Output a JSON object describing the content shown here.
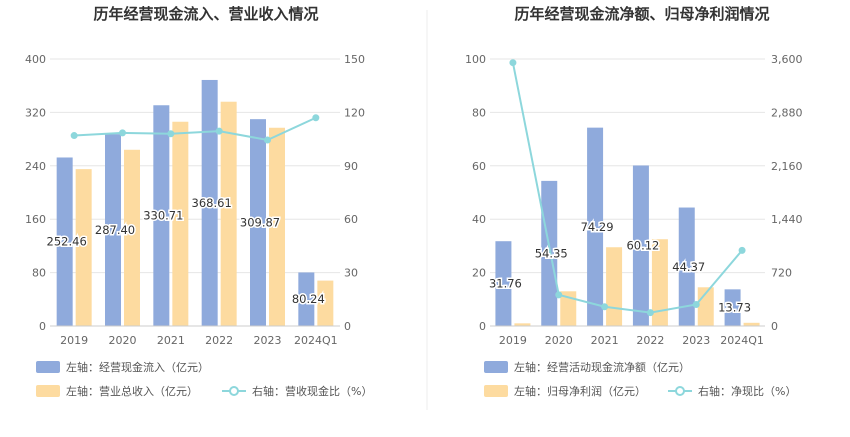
{
  "colors": {
    "bar_primary": "#8faadc",
    "bar_secondary": "#fddba0",
    "line": "#8dd7dc",
    "grid": "#e6e6e6",
    "divider": "#eeeeee"
  },
  "chart_data": [
    {
      "type": "bar",
      "title": "历年经营现金流入、营业收入情况",
      "categories": [
        "2019",
        "2020",
        "2021",
        "2022",
        "2023",
        "2024Q1"
      ],
      "left_axis": {
        "ticks": [
          "0",
          "80",
          "160",
          "240",
          "320",
          "400"
        ],
        "ylim": [
          0,
          400
        ]
      },
      "right_axis": {
        "ticks": [
          "0",
          "30",
          "60",
          "90",
          "120",
          "150"
        ],
        "ylim": [
          0,
          150
        ]
      },
      "series": [
        {
          "name": "左轴：经营现金流入（亿元）",
          "type": "bar",
          "axis": "left",
          "color": "#8faadc",
          "values": [
            252.46,
            287.4,
            330.71,
            368.61,
            309.87,
            80.24
          ],
          "labels": [
            "252.46",
            "287.40",
            "330.71",
            "368.61",
            "309.87",
            "80.24"
          ]
        },
        {
          "name": "左轴：营业总收入（亿元）",
          "type": "bar",
          "axis": "left",
          "color": "#fddba0",
          "values": [
            235,
            264,
            306,
            336,
            297,
            68
          ]
        },
        {
          "name": "右轴：营收现金比（%）",
          "type": "line",
          "axis": "right",
          "color": "#8dd7dc",
          "values": [
            107,
            108.5,
            108,
            109.5,
            104.5,
            117
          ]
        }
      ]
    },
    {
      "type": "bar",
      "title": "历年经营现金流净额、归母净利润情况",
      "categories": [
        "2019",
        "2020",
        "2021",
        "2022",
        "2023",
        "2024Q1"
      ],
      "left_axis": {
        "ticks": [
          "0",
          "20",
          "40",
          "60",
          "80",
          "100"
        ],
        "ylim": [
          0,
          100
        ]
      },
      "right_axis": {
        "ticks": [
          "0",
          "720",
          "1,440",
          "2,160",
          "2,880",
          "3,600"
        ],
        "ylim": [
          0,
          3600
        ]
      },
      "series": [
        {
          "name": "左轴：经营活动现金流净额（亿元）",
          "type": "bar",
          "axis": "left",
          "color": "#8faadc",
          "values": [
            31.76,
            54.35,
            74.29,
            60.12,
            44.37,
            13.73
          ],
          "labels": [
            "31.76",
            "54.35",
            "74.29",
            "60.12",
            "44.37",
            "13.73"
          ]
        },
        {
          "name": "左轴：归母净利润（亿元）",
          "type": "bar",
          "axis": "left",
          "color": "#fddba0",
          "values": [
            1.0,
            13.0,
            29.5,
            32.5,
            14.5,
            1.2
          ]
        },
        {
          "name": "右轴：净现比（%）",
          "type": "line",
          "axis": "right",
          "color": "#8dd7dc",
          "values": [
            3550,
            420,
            260,
            180,
            290,
            1020
          ]
        }
      ]
    }
  ]
}
